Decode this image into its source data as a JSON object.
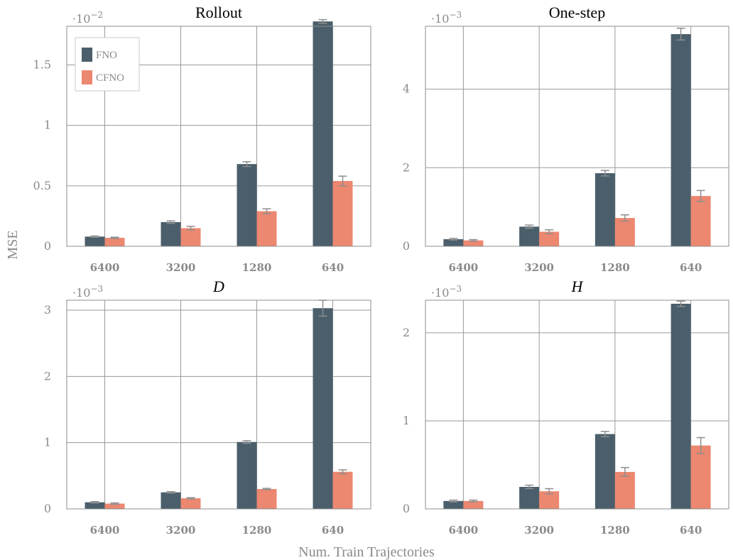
{
  "figure": {
    "ylabel": "MSE",
    "xlabel": "Num. Train Trajectories"
  },
  "colors": {
    "FNO": "#4a5f6b",
    "CFNO": "#ec8770"
  },
  "chart_data": [
    {
      "type": "bar",
      "title": "Rollout",
      "title_italic": false,
      "scale_text": "·10",
      "scale_exp": "−2",
      "categories": [
        "6400",
        "3200",
        "1280",
        "640"
      ],
      "ylim": [
        0,
        1.82
      ],
      "yticks": [
        0,
        0.5,
        1,
        1.5
      ],
      "ytick_labels": [
        "0",
        "0.5",
        "1",
        "1.5"
      ],
      "grid": true,
      "legend": {
        "position": "top-left",
        "entries": [
          "FNO",
          "CFNO"
        ]
      },
      "series": [
        {
          "name": "FNO",
          "values": [
            0.08,
            0.2,
            0.68,
            1.86
          ],
          "errors": [
            0.005,
            0.01,
            0.02,
            0.015
          ]
        },
        {
          "name": "CFNO",
          "values": [
            0.07,
            0.15,
            0.29,
            0.54
          ],
          "errors": [
            0.005,
            0.015,
            0.02,
            0.04
          ]
        }
      ]
    },
    {
      "type": "bar",
      "title": "One-step",
      "title_italic": false,
      "scale_text": "·10",
      "scale_exp": "−3",
      "categories": [
        "6400",
        "3200",
        "1280",
        "640"
      ],
      "ylim": [
        0,
        5.6
      ],
      "yticks": [
        0,
        2,
        4
      ],
      "ytick_labels": [
        "0",
        "2",
        "4"
      ],
      "grid": true,
      "series": [
        {
          "name": "FNO",
          "values": [
            0.18,
            0.5,
            1.86,
            5.4
          ],
          "errors": [
            0.02,
            0.04,
            0.07,
            0.15
          ]
        },
        {
          "name": "CFNO",
          "values": [
            0.15,
            0.37,
            0.72,
            1.28
          ],
          "errors": [
            0.02,
            0.05,
            0.08,
            0.14
          ]
        }
      ]
    },
    {
      "type": "bar",
      "title": "D",
      "title_italic": true,
      "scale_text": "·10",
      "scale_exp": "−3",
      "categories": [
        "6400",
        "3200",
        "1280",
        "640"
      ],
      "ylim": [
        0,
        3.15
      ],
      "yticks": [
        0,
        1,
        2,
        3
      ],
      "ytick_labels": [
        "0",
        "1",
        "2",
        "3"
      ],
      "grid": true,
      "series": [
        {
          "name": "FNO",
          "values": [
            0.1,
            0.25,
            1.01,
            3.03
          ],
          "errors": [
            0.01,
            0.01,
            0.02,
            0.12
          ]
        },
        {
          "name": "CFNO",
          "values": [
            0.08,
            0.16,
            0.3,
            0.56
          ],
          "errors": [
            0.01,
            0.01,
            0.01,
            0.03
          ]
        }
      ]
    },
    {
      "type": "bar",
      "title": "H",
      "title_italic": true,
      "scale_text": "·10",
      "scale_exp": "−3",
      "categories": [
        "6400",
        "3200",
        "1280",
        "640"
      ],
      "ylim": [
        0,
        2.37
      ],
      "yticks": [
        0,
        1,
        2
      ],
      "ytick_labels": [
        "0",
        "1",
        "2"
      ],
      "grid": true,
      "series": [
        {
          "name": "FNO",
          "values": [
            0.09,
            0.25,
            0.85,
            2.33
          ],
          "errors": [
            0.01,
            0.02,
            0.03,
            0.03
          ]
        },
        {
          "name": "CFNO",
          "values": [
            0.09,
            0.2,
            0.42,
            0.72
          ],
          "errors": [
            0.01,
            0.03,
            0.05,
            0.09
          ]
        }
      ]
    }
  ]
}
